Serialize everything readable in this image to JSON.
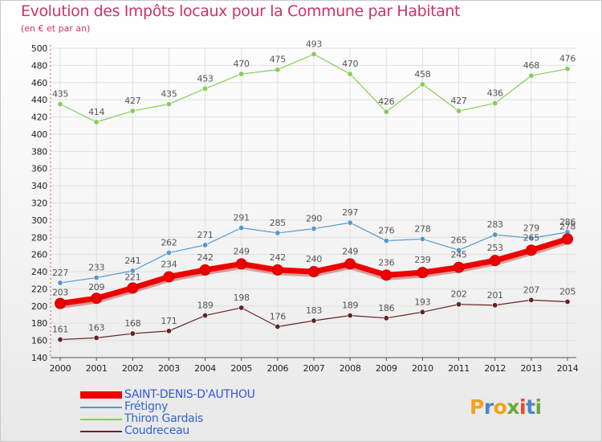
{
  "header": {
    "title": "Evolution des Impôts locaux pour la Commune par Habitant",
    "subtitle": "(en € et par an)"
  },
  "logo": {
    "text": "Proxiti",
    "colors": [
      "#f3a21d",
      "#4a86c8",
      "#f3a21d",
      "#6aaa35",
      "#e8452c",
      "#4a86c8",
      "#6aaa35"
    ]
  },
  "colors": {
    "title": "#cc3366",
    "grid": "#e0e0e0",
    "axis_red": "#e05050"
  },
  "chart_data": {
    "type": "line",
    "title": "Evolution des Impôts locaux pour la Commune par Habitant",
    "subtitle": "(en € et par an)",
    "x": [
      2000,
      2001,
      2002,
      2003,
      2004,
      2005,
      2006,
      2007,
      2008,
      2009,
      2010,
      2011,
      2012,
      2013,
      2014
    ],
    "ylim": [
      140,
      500
    ],
    "yticks": [
      140,
      160,
      180,
      200,
      220,
      240,
      260,
      280,
      300,
      320,
      340,
      360,
      380,
      400,
      420,
      440,
      460,
      480,
      500
    ],
    "grid": true,
    "legend_position": "bottom-left",
    "series": [
      {
        "name": "SAINT-DENIS-D'AUTHOU",
        "color": "#ee0000",
        "values": [
          203,
          209,
          221,
          234,
          242,
          249,
          242,
          240,
          249,
          236,
          239,
          245,
          253,
          265,
          278
        ]
      },
      {
        "name": "Frétigny",
        "color": "#5599cc",
        "values": [
          227,
          233,
          241,
          262,
          271,
          291,
          285,
          290,
          297,
          276,
          278,
          265,
          283,
          279,
          286
        ]
      },
      {
        "name": "Thiron Gardais",
        "color": "#88cc55",
        "values": [
          435,
          414,
          427,
          435,
          453,
          470,
          475,
          493,
          470,
          426,
          458,
          427,
          436,
          468,
          476
        ]
      },
      {
        "name": "Coudreceau",
        "color": "#662222",
        "values": [
          161,
          163,
          168,
          171,
          189,
          198,
          176,
          183,
          189,
          186,
          193,
          202,
          201,
          207,
          205
        ]
      }
    ]
  }
}
